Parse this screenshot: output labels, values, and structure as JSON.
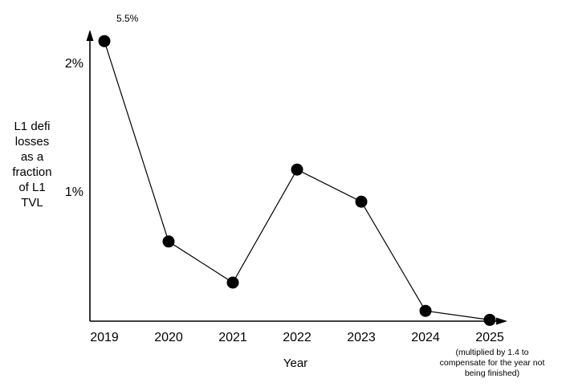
{
  "colors": {
    "background": "#ffffff",
    "ink": "#000000"
  },
  "annotations": {
    "peak_label": "5.5%",
    "footnote_lines": [
      "(multiplied by 1.4 to",
      "compensate for the year not",
      "being finished)"
    ]
  },
  "chart_data": {
    "type": "line",
    "title": "",
    "xlabel": "Year",
    "ylabel": "L1 defi losses as a fraction of L1 TVL",
    "ylabel_lines": [
      "L1 defi",
      "losses",
      "as a",
      "fraction",
      "of L1",
      "TVL"
    ],
    "categories": [
      "2019",
      "2020",
      "2021",
      "2022",
      "2023",
      "2024",
      "2025"
    ],
    "series": [
      {
        "name": "L1 defi losses as a fraction of L1 TVL",
        "values": [
          5.5,
          0.62,
          0.3,
          1.18,
          0.93,
          0.08,
          0.01
        ],
        "plotted_values": [
          2.18,
          0.62,
          0.3,
          1.18,
          0.93,
          0.08,
          0.01
        ]
      }
    ],
    "units": "%",
    "yticks": [
      {
        "label": "2%",
        "value": 2
      },
      {
        "label": "1%",
        "value": 1
      }
    ],
    "ylim": [
      0,
      2.27
    ],
    "grid": false,
    "legend": "none",
    "marker": "filled-circle",
    "annotations": [
      {
        "target": "2019",
        "text": "5.5%",
        "note": "2019 value exceeds axis range; point drawn clipped near top of y-axis"
      }
    ],
    "footnote": "(multiplied by 1.4 to compensate for the year not being finished)"
  }
}
